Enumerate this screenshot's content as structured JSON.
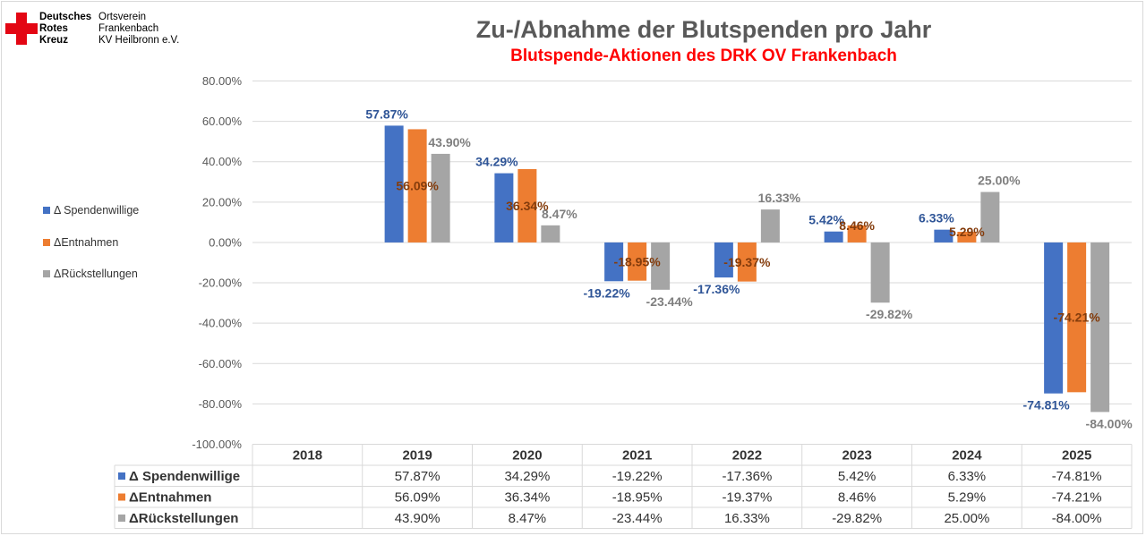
{
  "header": {
    "org_bold": [
      "Deutsches",
      "Rotes",
      "Kreuz"
    ],
    "org_lines": [
      "Ortsverein",
      "Frankenbach",
      "KV Heilbronn e.V."
    ],
    "logo_icon": "red-cross-icon",
    "logo_color": "#e30613"
  },
  "chart_data": {
    "type": "bar",
    "title": "Zu-/Abnahme der Blutspenden pro Jahr",
    "subtitle": "Blutspende-Aktionen des DRK OV Frankenbach",
    "categories": [
      "2018",
      "2019",
      "2020",
      "2021",
      "2022",
      "2023",
      "2024",
      "2025"
    ],
    "ylim": [
      -100,
      80
    ],
    "yticks": [
      "80.00%",
      "60.00%",
      "40.00%",
      "20.00%",
      "0.00%",
      "-20.00%",
      "-40.00%",
      "-60.00%",
      "-80.00%",
      "-100.00%"
    ],
    "grid": true,
    "legend_placement": "left",
    "series": [
      {
        "name": "Δ Spendenwillige",
        "color": "#4472c4",
        "label_color": "#2f5597",
        "values": [
          null,
          57.87,
          34.29,
          -19.22,
          -17.36,
          5.42,
          6.33,
          -74.81
        ],
        "labels": [
          "",
          "57.87%",
          "34.29%",
          "-19.22%",
          "-17.36%",
          "5.42%",
          "6.33%",
          "-74.81%"
        ]
      },
      {
        "name": "ΔEntnahmen",
        "color": "#ed7d31",
        "label_color": "#843c0c",
        "values": [
          null,
          56.09,
          36.34,
          -18.95,
          -19.37,
          8.46,
          5.29,
          -74.21
        ],
        "labels": [
          "",
          "56.09%",
          "36.34%",
          "-18.95%",
          "-19.37%",
          "8.46%",
          "5.29%",
          "-74.21%"
        ]
      },
      {
        "name": "ΔRückstellungen",
        "color": "#a5a5a5",
        "label_color": "#7f7f7f",
        "values": [
          null,
          43.9,
          8.47,
          -23.44,
          16.33,
          -29.82,
          25.0,
          -84.0
        ],
        "labels": [
          "",
          "43.90%",
          "8.47%",
          "-23.44%",
          "16.33%",
          "-29.82%",
          "25.00%",
          "-84.00%"
        ]
      }
    ]
  }
}
